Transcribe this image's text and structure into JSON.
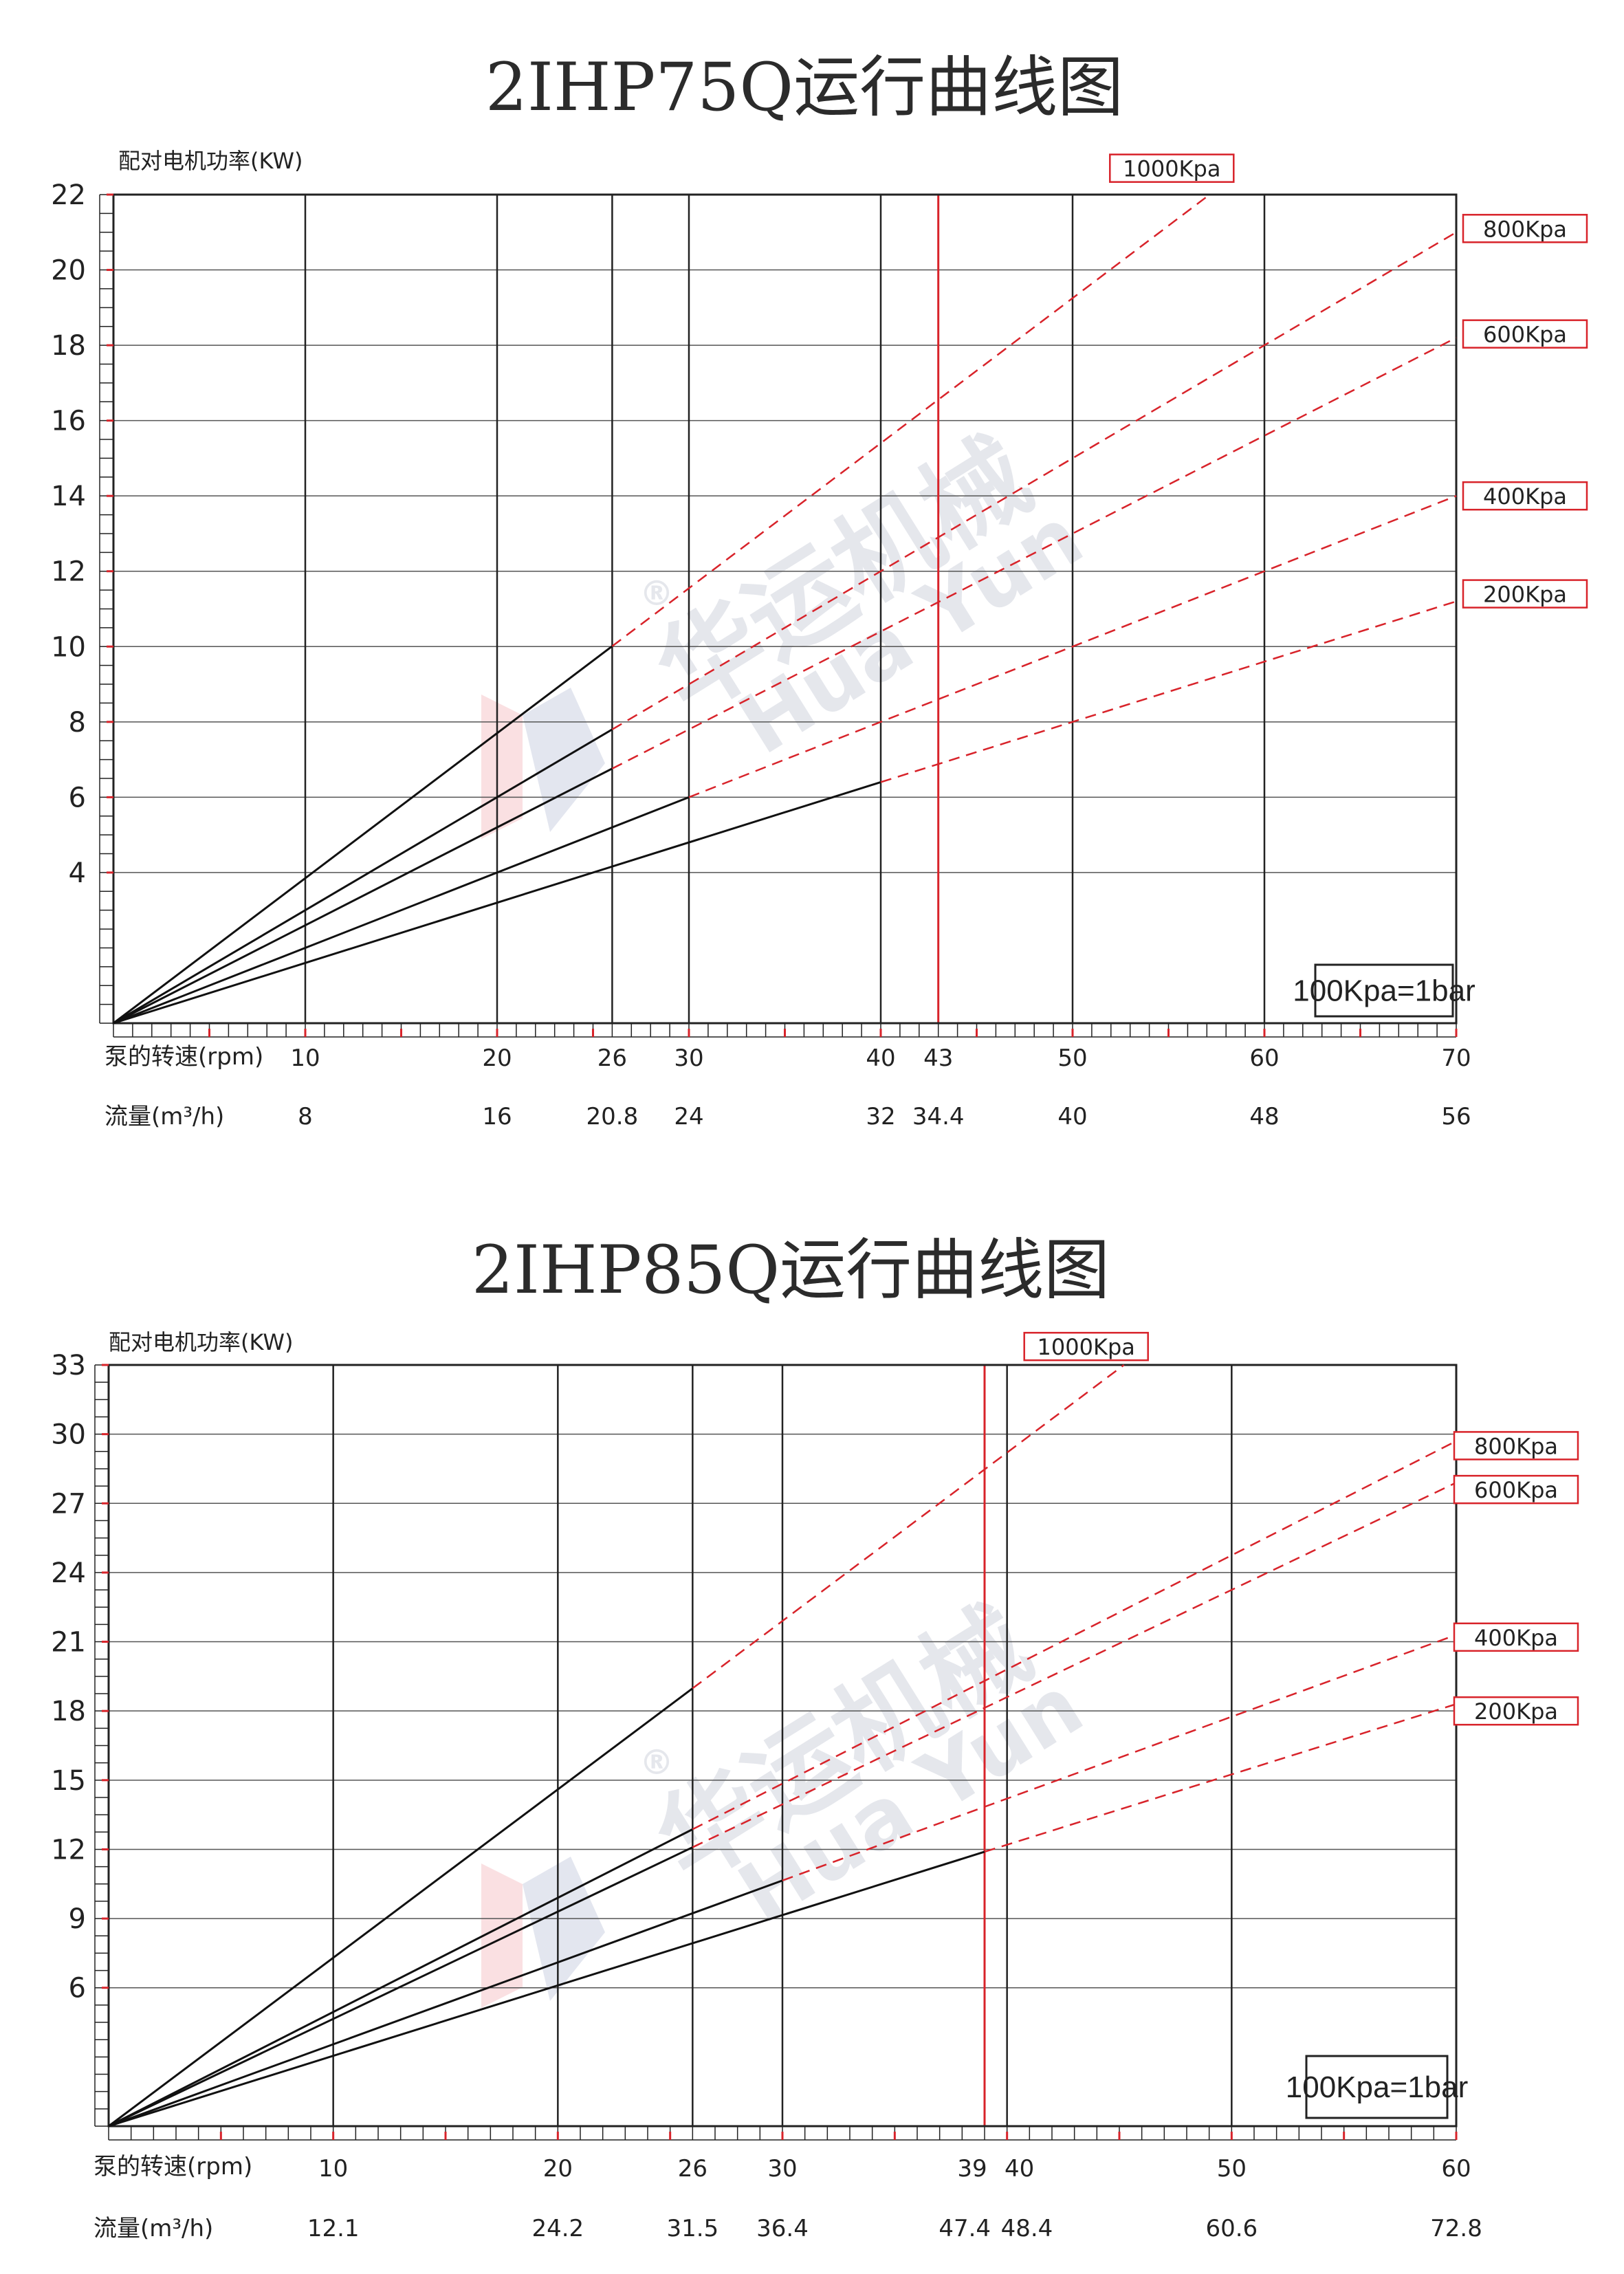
{
  "chart_data": [
    {
      "type": "line",
      "title": "2IHP75Q运行曲线图",
      "ylabel": "配对电机功率(KW)",
      "ylim": [
        0,
        22
      ],
      "yticks": [
        4,
        6,
        8,
        10,
        12,
        14,
        16,
        18,
        20,
        22
      ],
      "ytick_labels": [
        "4",
        "6",
        "8",
        "10",
        "12",
        "14",
        "16",
        "18",
        "20",
        "22"
      ],
      "xlim": [
        0,
        70
      ],
      "xlabel_rpm": "泵的转速(rpm)",
      "xlabel_flow": "流量(m³/h)",
      "x_rpm": [
        10,
        20,
        26,
        30,
        40,
        43,
        50,
        60,
        70
      ],
      "x_rpm_labels": [
        "10",
        "20",
        "26",
        "30",
        "40",
        "43",
        "50",
        "60",
        "70"
      ],
      "x_flow_labels": [
        "8",
        "16",
        "20.8",
        "24",
        "32",
        "34.4",
        "40",
        "48",
        "56"
      ],
      "highlight_x": 43,
      "note": "100Kpa=1bar",
      "series": [
        {
          "name": "1000Kpa",
          "solid_end_x": 26,
          "slope": 0.385,
          "label_y": 22.7
        },
        {
          "name": "800Kpa",
          "solid_end_x": 26,
          "slope": 0.3,
          "label_y": 21.1
        },
        {
          "name": "600Kpa",
          "solid_end_x": 26,
          "slope": 0.26,
          "label_y": 18.3
        },
        {
          "name": "400Kpa",
          "solid_end_x": 30,
          "slope": 0.2,
          "label_y": 14.0
        },
        {
          "name": "200Kpa",
          "solid_end_x": 40,
          "slope": 0.16,
          "label_y": 11.4
        }
      ]
    },
    {
      "type": "line",
      "title": "2IHP85Q运行曲线图",
      "ylabel": "配对电机功率(KW)",
      "ylim": [
        0,
        33
      ],
      "yticks": [
        6,
        9,
        12,
        15,
        18,
        21,
        24,
        27,
        30,
        33
      ],
      "ytick_labels": [
        "6",
        "9",
        "12",
        "15",
        "18",
        "21",
        "24",
        "27",
        "30",
        "33"
      ],
      "xlim": [
        0,
        60
      ],
      "xlabel_rpm": "泵的转速(rpm)",
      "xlabel_flow": "流量(m³/h)",
      "x_rpm": [
        10,
        20,
        26,
        30,
        39,
        40,
        50,
        60
      ],
      "x_rpm_labels": [
        "10",
        "20",
        "26",
        "30",
        "39",
        "40",
        "50",
        "60"
      ],
      "x_flow_labels": [
        "12.1",
        "24.2",
        "31.5",
        "36.4",
        "47.4",
        "48.4",
        "60.6",
        "72.8"
      ],
      "highlight_x": 39,
      "note": "100Kpa=1bar",
      "series": [
        {
          "name": "1000Kpa",
          "solid_end_x": 26,
          "slope": 0.73,
          "label_y": 33.8
        },
        {
          "name": "800Kpa",
          "solid_end_x": 26,
          "slope": 0.495,
          "label_y": 29.5
        },
        {
          "name": "600Kpa",
          "solid_end_x": 26,
          "slope": 0.465,
          "label_y": 27.6
        },
        {
          "name": "400Kpa",
          "solid_end_x": 30,
          "slope": 0.355,
          "label_y": 21.2
        },
        {
          "name": "200Kpa",
          "solid_end_x": 39,
          "slope": 0.305,
          "label_y": 18.0
        }
      ]
    }
  ],
  "watermark": {
    "brand": "华运机械",
    "brand_latin": "Hua Yun",
    "reg": "®"
  }
}
